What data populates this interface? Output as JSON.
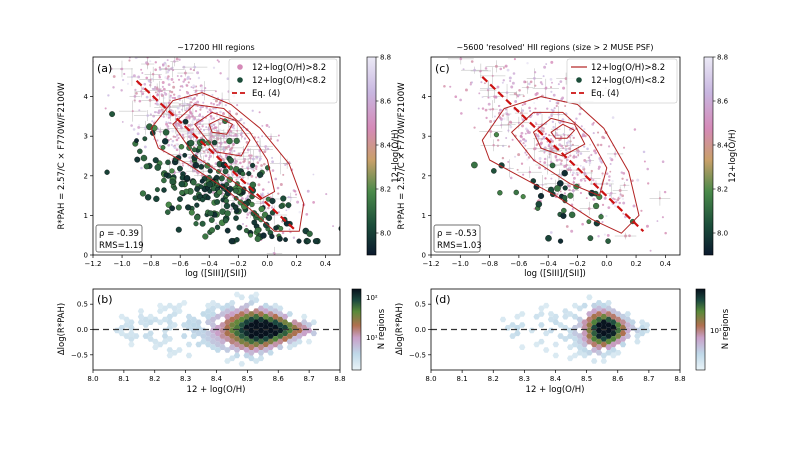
{
  "colors": {
    "high_metal_contour": "#b22222",
    "eq4_line": "#cc1111",
    "zero_line": "#333333",
    "metallicity_cmap": [
      "#0b1a2e",
      "#1c4d3a",
      "#4a8a4a",
      "#c9a06a",
      "#d58ab8",
      "#c8b6e0",
      "#e8e4f4"
    ],
    "count_cmap": [
      "#eaf4f8",
      "#bfd8e8",
      "#c9a0c8",
      "#b07050",
      "#5a8a3a",
      "#1c4a40",
      "#08121e"
    ]
  },
  "panels": {
    "a": {
      "letter": "(a)",
      "title": "~17200 HII regions",
      "ylabel": "R*PAH = 2.57/C × F770W/F2100W",
      "xlabel": "log ([SIII]/[SII])",
      "stats": [
        "ρ = -0.39",
        "RMS=1.19"
      ],
      "legend": [
        "12+log(O/H)>8.2",
        "12+log(O/H)<8.2",
        "Eq. (4)"
      ]
    },
    "b": {
      "letter": "(b)",
      "ylabel": "Δlog(R*PAH)",
      "xlabel": "12 + log(O/H)"
    },
    "c": {
      "letter": "(c)",
      "title": "~5600 'resolved' HII regions (size > 2 MUSE PSF)",
      "ylabel": "R*PAH = 2.57/C × F770W/F2100W",
      "xlabel": "log ([SIII]/[SII])",
      "stats": [
        "ρ = -0.53",
        "RMS=1.03"
      ],
      "legend": [
        "12+log(O/H)>8.2",
        "12+log(O/H)<8.2",
        "Eq. (4)"
      ]
    },
    "d": {
      "letter": "(d)",
      "ylabel": "Δlog(R*PAH)",
      "xlabel": "12 + log(O/H)"
    }
  },
  "colorbars": {
    "metallicity_label": "12+log(O/H)",
    "metallicity_ticks": [
      "8.0",
      "8.2",
      "8.4",
      "8.6",
      "8.8"
    ],
    "count_label": "N regions",
    "count_ticks_left": [
      "10¹",
      "10²"
    ],
    "count_ticks_right": [
      "10¹"
    ]
  },
  "chart_data": [
    {
      "panel": "a",
      "type": "scatter",
      "title": "~17200 HII regions",
      "xlabel": "log ([SIII]/[SII])",
      "ylabel": "R*PAH = 2.57/C × F770W/F2100W",
      "xlim": [
        -1.2,
        0.5
      ],
      "ylim": [
        0,
        5
      ],
      "xticks": [
        -1.2,
        -1.0,
        -0.8,
        -0.6,
        -0.4,
        -0.2,
        0.0,
        0.2,
        0.4
      ],
      "yticks": [
        0,
        1,
        2,
        3,
        4
      ],
      "eq4_line": {
        "x": [
          -0.9,
          0.2
        ],
        "y": [
          4.4,
          0.6
        ]
      },
      "contours": [
        [
          [
            -0.8,
            3.2
          ],
          [
            -0.65,
            3.9
          ],
          [
            -0.45,
            4.1
          ],
          [
            -0.25,
            3.8
          ],
          [
            -0.05,
            3.2
          ],
          [
            0.15,
            2.3
          ],
          [
            0.25,
            1.3
          ],
          [
            0.22,
            0.6
          ],
          [
            0.05,
            0.6
          ],
          [
            -0.1,
            1.1
          ],
          [
            -0.3,
            1.7
          ],
          [
            -0.55,
            2.3
          ],
          [
            -0.75,
            2.7
          ],
          [
            -0.8,
            3.2
          ]
        ],
        [
          [
            -0.65,
            3.3
          ],
          [
            -0.5,
            3.8
          ],
          [
            -0.3,
            3.7
          ],
          [
            -0.12,
            3.1
          ],
          [
            0.0,
            2.4
          ],
          [
            0.05,
            1.6
          ],
          [
            -0.05,
            1.4
          ],
          [
            -0.25,
            1.9
          ],
          [
            -0.5,
            2.5
          ],
          [
            -0.65,
            3.3
          ]
        ],
        [
          [
            -0.5,
            3.3
          ],
          [
            -0.38,
            3.6
          ],
          [
            -0.22,
            3.4
          ],
          [
            -0.12,
            2.9
          ],
          [
            -0.18,
            2.5
          ],
          [
            -0.35,
            2.6
          ],
          [
            -0.5,
            3.3
          ]
        ],
        [
          [
            -0.4,
            3.3
          ],
          [
            -0.32,
            3.45
          ],
          [
            -0.24,
            3.3
          ],
          [
            -0.28,
            3.05
          ],
          [
            -0.38,
            3.1
          ],
          [
            -0.4,
            3.3
          ]
        ]
      ],
      "legend_position": "top-right",
      "stats": {
        "rho": -0.39,
        "rms": 1.19
      }
    },
    {
      "panel": "b",
      "type": "heatmap",
      "xlabel": "12 + log(O/H)",
      "ylabel": "Δlog(R*PAH)",
      "xlim": [
        8.0,
        8.8
      ],
      "ylim": [
        -0.8,
        0.8
      ],
      "xticks": [
        8.0,
        8.1,
        8.2,
        8.3,
        8.4,
        8.5,
        8.6,
        8.7,
        8.8
      ],
      "yticks": [
        -0.5,
        0.0,
        0.5
      ],
      "density_range": [
        8.05,
        8.72
      ],
      "density_peak": {
        "x": 8.55,
        "y": 0.0
      },
      "zero_line": 0.0
    },
    {
      "panel": "c",
      "type": "scatter",
      "title": "~5600 'resolved' HII regions (size > 2 MUSE PSF)",
      "xlabel": "log ([SIII]/[SII])",
      "ylabel": "R*PAH = 2.57/C × F770W/F2100W",
      "xlim": [
        -1.2,
        0.5
      ],
      "ylim": [
        0,
        5
      ],
      "xticks": [
        -1.2,
        -1.0,
        -0.8,
        -0.6,
        -0.4,
        -0.2,
        0.0,
        0.2,
        0.4
      ],
      "yticks": [
        0,
        1,
        2,
        3,
        4
      ],
      "eq4_line": {
        "x": [
          -0.85,
          0.25
        ],
        "y": [
          4.5,
          0.6
        ]
      },
      "contours": [
        [
          [
            -0.85,
            2.9
          ],
          [
            -0.7,
            3.7
          ],
          [
            -0.45,
            4.0
          ],
          [
            -0.2,
            3.8
          ],
          [
            -0.02,
            3.2
          ],
          [
            0.15,
            2.1
          ],
          [
            0.22,
            1.0
          ],
          [
            0.1,
            0.55
          ],
          [
            -0.1,
            0.9
          ],
          [
            -0.35,
            1.5
          ],
          [
            -0.6,
            2.0
          ],
          [
            -0.8,
            2.4
          ],
          [
            -0.85,
            2.9
          ]
        ],
        [
          [
            -0.65,
            3.1
          ],
          [
            -0.5,
            3.6
          ],
          [
            -0.3,
            3.6
          ],
          [
            -0.12,
            3.0
          ],
          [
            0.0,
            2.2
          ],
          [
            -0.05,
            1.5
          ],
          [
            -0.25,
            1.8
          ],
          [
            -0.5,
            2.4
          ],
          [
            -0.65,
            3.1
          ]
        ],
        [
          [
            -0.5,
            3.1
          ],
          [
            -0.38,
            3.45
          ],
          [
            -0.22,
            3.3
          ],
          [
            -0.15,
            2.8
          ],
          [
            -0.3,
            2.5
          ],
          [
            -0.45,
            2.7
          ],
          [
            -0.5,
            3.1
          ]
        ],
        [
          [
            -0.38,
            3.1
          ],
          [
            -0.3,
            3.3
          ],
          [
            -0.22,
            3.15
          ],
          [
            -0.27,
            2.95
          ],
          [
            -0.35,
            2.95
          ],
          [
            -0.38,
            3.1
          ]
        ]
      ],
      "legend_position": "top-right",
      "stats": {
        "rho": -0.53,
        "rms": 1.03
      }
    },
    {
      "panel": "d",
      "type": "heatmap",
      "xlabel": "12 + log(O/H)",
      "ylabel": "Δlog(R*PAH)",
      "xlim": [
        8.0,
        8.8
      ],
      "ylim": [
        -0.8,
        0.8
      ],
      "xticks": [
        8.0,
        8.1,
        8.2,
        8.3,
        8.4,
        8.5,
        8.6,
        8.7,
        8.8
      ],
      "yticks": [
        -0.5,
        0.0,
        0.5
      ],
      "density_range": [
        8.22,
        8.72
      ],
      "density_peak": {
        "x": 8.56,
        "y": 0.0
      },
      "zero_line": 0.0
    }
  ]
}
